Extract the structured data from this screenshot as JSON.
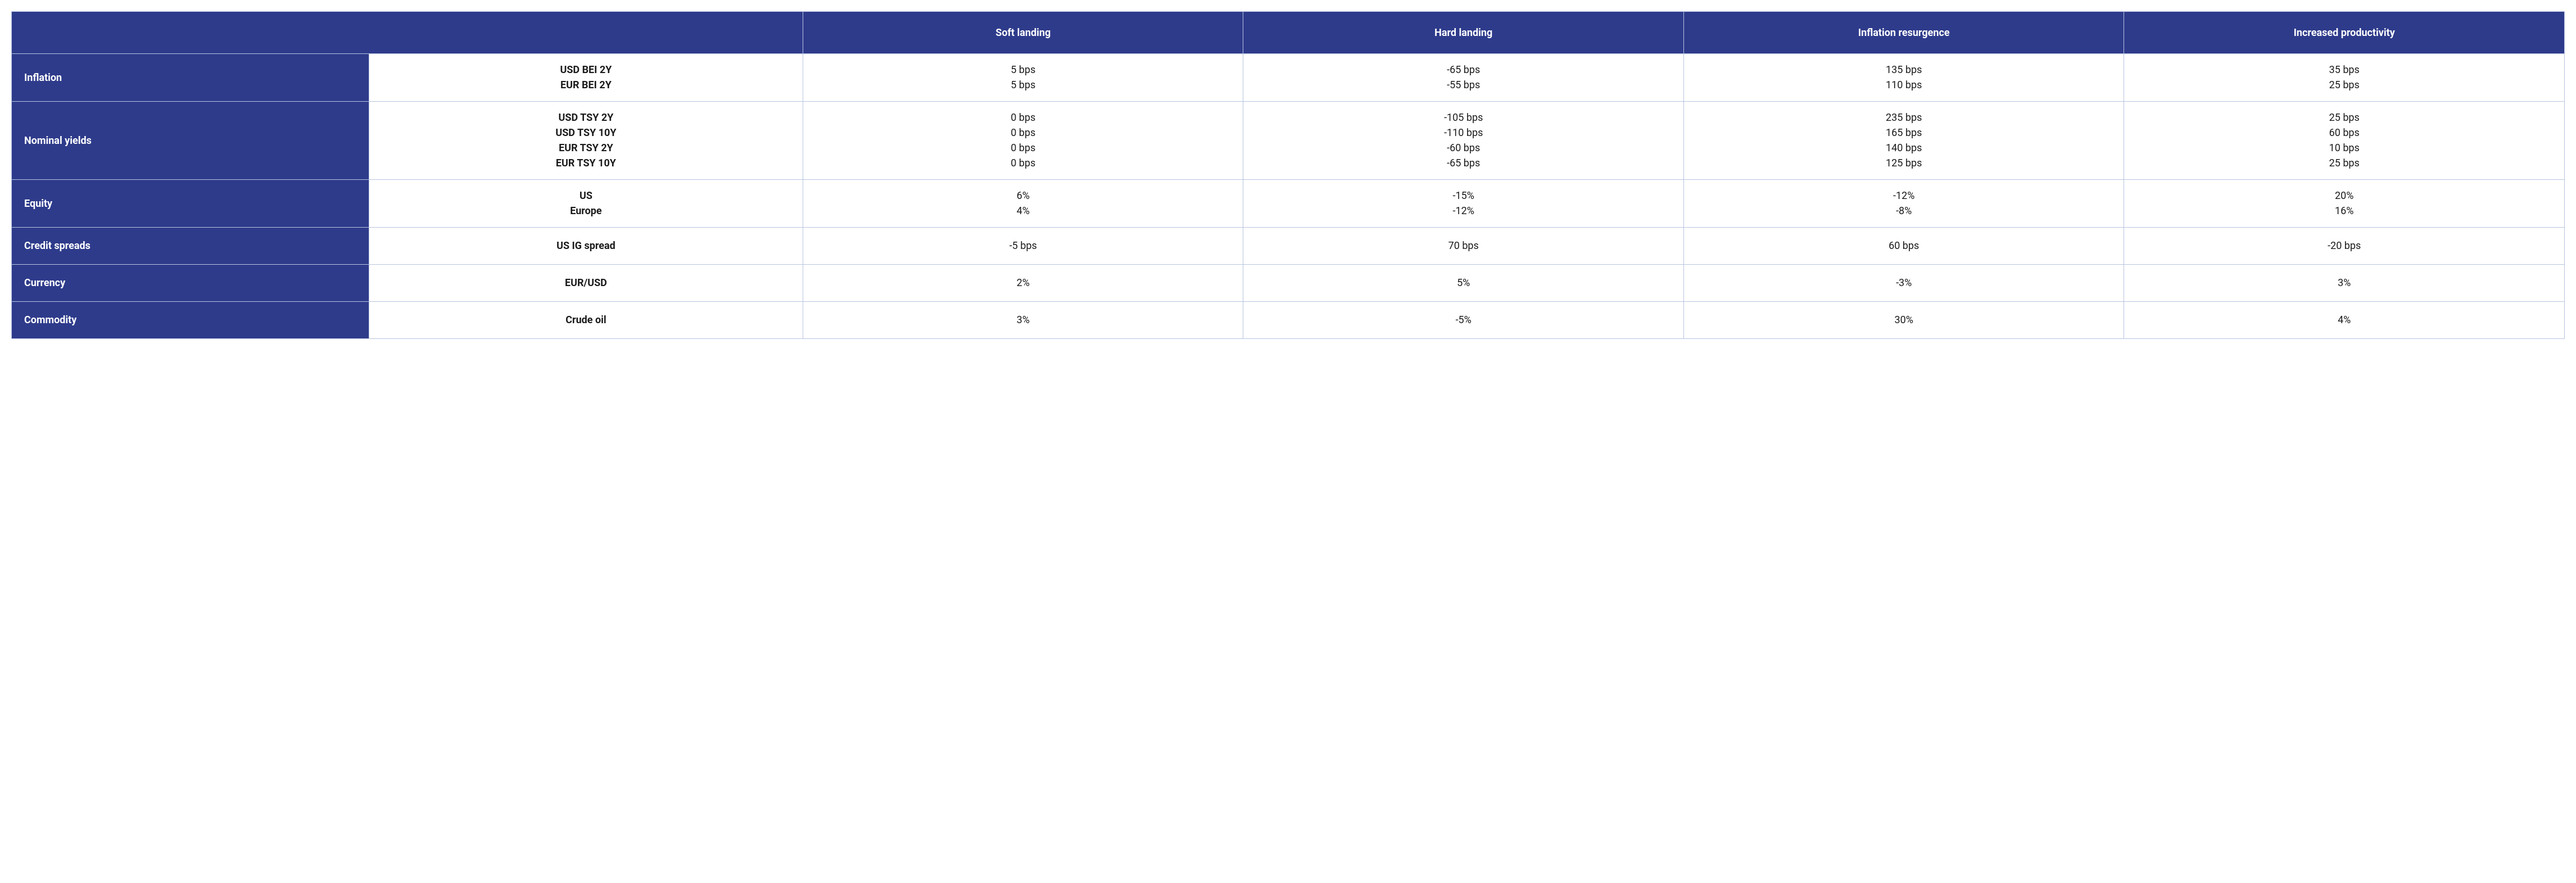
{
  "table": {
    "type": "table",
    "colors": {
      "header_bg": "#2e3b8b",
      "header_text": "#ffffff",
      "body_bg": "#ffffff",
      "body_text": "#1a1a1a",
      "border": "#b8c4e0"
    },
    "header": {
      "blank": "",
      "scenarios": [
        "Soft landing",
        "Hard landing",
        "Inflation resurgence",
        "Increased productivity"
      ]
    },
    "rows": [
      {
        "category": "Inflation",
        "metrics": [
          "USD BEI 2Y",
          "EUR BEI 2Y"
        ],
        "values": [
          [
            "5 bps",
            "5 bps"
          ],
          [
            "-65 bps",
            "-55 bps"
          ],
          [
            "135 bps",
            "110 bps"
          ],
          [
            "35 bps",
            "25 bps"
          ]
        ]
      },
      {
        "category": "Nominal yields",
        "metrics": [
          "USD TSY 2Y",
          "USD TSY 10Y",
          "EUR TSY 2Y",
          "EUR TSY 10Y"
        ],
        "values": [
          [
            "0 bps",
            "0 bps",
            "0 bps",
            "0 bps"
          ],
          [
            "-105 bps",
            "-110  bps",
            "-60 bps",
            "-65 bps"
          ],
          [
            "235 bps",
            "165 bps",
            "140 bps",
            "125 bps"
          ],
          [
            "25 bps",
            "60 bps",
            "10 bps",
            "25 bps"
          ]
        ]
      },
      {
        "category": "Equity",
        "metrics": [
          "US",
          "Europe"
        ],
        "values": [
          [
            "6%",
            "4%"
          ],
          [
            "-15%",
            "-12%"
          ],
          [
            "-12%",
            "-8%"
          ],
          [
            "20%",
            "16%"
          ]
        ]
      },
      {
        "category": "Credit spreads",
        "metrics": [
          "US IG spread"
        ],
        "values": [
          [
            "-5 bps"
          ],
          [
            "70 bps"
          ],
          [
            "60 bps"
          ],
          [
            "-20 bps"
          ]
        ]
      },
      {
        "category": "Currency",
        "metrics": [
          "EUR/USD"
        ],
        "values": [
          [
            "2%"
          ],
          [
            "5%"
          ],
          [
            "-3%"
          ],
          [
            "3%"
          ]
        ]
      },
      {
        "category": "Commodity",
        "metrics": [
          "Crude oil"
        ],
        "values": [
          [
            "3%"
          ],
          [
            "-5%"
          ],
          [
            "30%"
          ],
          [
            "4%"
          ]
        ]
      }
    ]
  }
}
